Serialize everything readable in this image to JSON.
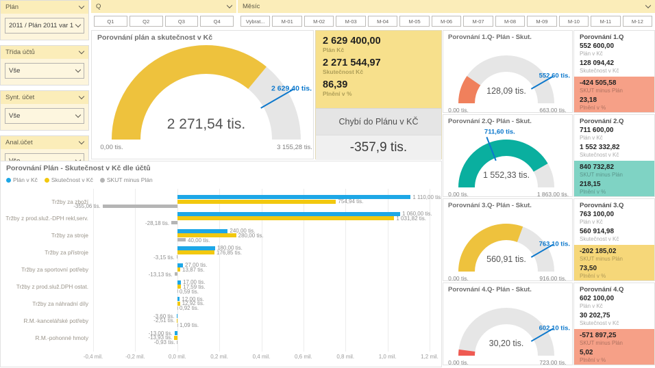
{
  "colors": {
    "accent_yellow": "#f2c80f",
    "target_blue": "#0d78cc",
    "gauge_track": "#e6e6e6",
    "slicer_header_bg": "#fbedb9",
    "kpi_bg": "#f7e08c"
  },
  "sidebar": {
    "filters": [
      {
        "label": "Plán",
        "value": "2011 / Plán 2011 var 1"
      },
      {
        "label": "Třída účtů",
        "value": "Vše"
      },
      {
        "label": "Synt. účet",
        "value": "Vše"
      },
      {
        "label": "Anal.účet",
        "value": "Vše"
      }
    ]
  },
  "slicers": {
    "q": {
      "label": "Q",
      "buttons": [
        "Q1",
        "Q2",
        "Q3",
        "Q4"
      ]
    },
    "month": {
      "label": "Měsíc",
      "buttons": [
        "Vybrat...",
        "M-01",
        "M-02",
        "M-03",
        "M-04",
        "M-05",
        "M-06",
        "M-07",
        "M-08",
        "M-09",
        "M-10",
        "M-11",
        "M-12"
      ]
    }
  },
  "kpi_panel": {
    "items": [
      {
        "value": "2 629 400,00",
        "label": "Plán Kč"
      },
      {
        "value": "2 271 544,97",
        "label": "Skutečnost Kč"
      },
      {
        "value": "86,39",
        "label": "Plnění v %"
      }
    ],
    "missing_header": "Chybí do Plánu v KČ",
    "missing_value": "-357,9 tis."
  },
  "chart_data": [
    {
      "id": "main-gauge",
      "type": "gauge",
      "title": "Porovnání plán a skutečnost v Kč",
      "min": 0,
      "max": 3155.28,
      "value": 2271.54,
      "target": 2629.4,
      "value_label": "2 271,54 tis.",
      "min_label": "0,00 tis.",
      "max_label": "3 155,28 tis.",
      "target_label": "2 629,40 tis.",
      "fill": "#eec23d"
    },
    {
      "id": "accounts-bar",
      "type": "bar",
      "title": "Porovnání Plán - Skutečnost v Kč dle účtů",
      "unit": "tis.",
      "xlim": [
        -400,
        1200
      ],
      "x_ticks_values": [
        -400,
        -200,
        0,
        200,
        400,
        600,
        800,
        1000,
        1200
      ],
      "x_ticks_labels": [
        "-0,4 mil.",
        "-0,2 mil.",
        "0,0 mil.",
        "0,2 mil.",
        "0,4 mil.",
        "0,6 mil.",
        "0,8 mil.",
        "1,0 mil.",
        "1,2 mil."
      ],
      "categories": [
        "Tržby za zboží",
        "Tržby z prod.služ.-DPH rekl,serv.",
        "Tržby za stroje",
        "Tržby za přístroje",
        "Tržby za sportovní potřeby",
        "Tržby z prod.služ.DPH ostat.",
        "Tržby za náhradní díly",
        "R.M.-kancelářské potřeby",
        "R.M.-pohonné hmoty"
      ],
      "series": [
        {
          "name": "Plán v Kč",
          "color": "#1ea7e6",
          "values": [
            1110,
            1060,
            240,
            180,
            27,
            17,
            12,
            -3.6,
            -13
          ],
          "labels": [
            "1 110,00 tis.",
            "1 060,00 tis.",
            "240,00 tis.",
            "180,00 tis.",
            "27,00 tis.",
            "17,00 tis.",
            "12,00 tis.",
            "-3,60 tis.",
            "-13,00 tis."
          ]
        },
        {
          "name": "Skutečnost v Kč",
          "color": "#f2c80f",
          "values": [
            754.94,
            1031.82,
            280,
            176.85,
            13.87,
            17.59,
            12.92,
            -2.51,
            -13.93
          ],
          "labels": [
            "754,94 tis.",
            "1 031,82 tis.",
            "280,00 tis.",
            "176,85 tis.",
            "13,87 tis.",
            "17,59 tis.",
            "12,92 tis.",
            "-2,51 tis.",
            "-13,93 tis."
          ]
        },
        {
          "name": "SKUT minus Plán",
          "color": "#b5b5b5",
          "values": [
            -355.06,
            -28.18,
            40,
            -3.15,
            -13.13,
            0.59,
            0.92,
            1.09,
            -0.93
          ],
          "labels": [
            "-355,06 tis.",
            "-28,18 tis.",
            "40,00 tis.",
            "-3,15 tis.",
            "-13,13 tis.",
            "0,59 tis.",
            "0,92 tis.",
            "1,09 tis.",
            "-0,93 tis."
          ]
        }
      ]
    },
    {
      "id": "q1-gauge",
      "type": "gauge",
      "title": "Porovnání 1.Q- Plán - Skut.",
      "min": 0,
      "max": 663,
      "value": 128.09,
      "target": 552.6,
      "value_label": "128,09 tis.",
      "min_label": "0,00 tis.",
      "max_label": "663,00 tis.",
      "target_label": "552,60 tis.",
      "fill": "#f0805c"
    },
    {
      "id": "q2-gauge",
      "type": "gauge",
      "title": "Porovnání 2.Q- Plán - Skut.",
      "min": 0,
      "max": 1863,
      "value": 1552.33,
      "target": 711.6,
      "value_label": "1 552,33 tis.",
      "min_label": "0,00 tis.",
      "max_label": "1 863,00 tis.",
      "target_label": "711,60 tis.",
      "fill": "#0aaf9f"
    },
    {
      "id": "q3-gauge",
      "type": "gauge",
      "title": "Porovnání 3.Q- Plán - Skut.",
      "min": 0,
      "max": 916,
      "value": 560.91,
      "target": 763.1,
      "value_label": "560,91 tis.",
      "min_label": "0,00 tis.",
      "max_label": "916,00 tis.",
      "target_label": "763,10 tis.",
      "fill": "#eec23d"
    },
    {
      "id": "q4-gauge",
      "type": "gauge",
      "title": "Porovnání 4.Q- Plán - Skut.",
      "min": 0,
      "max": 723,
      "value": 30.2,
      "target": 602.1,
      "value_label": "30,20 tis.",
      "min_label": "0,00 tis.",
      "max_label": "723,00 tis.",
      "target_label": "602,10 tis.",
      "fill": "#ef5a52"
    }
  ],
  "quarter_cards": [
    {
      "title": "Porovnání 1.Q",
      "band_color": "#f6a087",
      "rows_white": [
        {
          "value": "552 600,00",
          "label": "Plán v Kč"
        },
        {
          "value": "128 094,42",
          "label": "Skutečnost v Kč"
        }
      ],
      "rows_band": [
        {
          "value": "-424 505,58",
          "label": "SKUT minus Plán"
        },
        {
          "value": "23,18",
          "label": "Plnění v %"
        }
      ]
    },
    {
      "title": "Porovnání 2.Q",
      "band_color": "#7fd3c4",
      "rows_white": [
        {
          "value": "711 600,00",
          "label": "Plán v Kč"
        },
        {
          "value": "1 552 332,82",
          "label": "Skutečnost v Kč"
        }
      ],
      "rows_band": [
        {
          "value": "840 732,82",
          "label": "SKUT minus Plán"
        },
        {
          "value": "218,15",
          "label": "Plnění v %"
        }
      ]
    },
    {
      "title": "Porovnání 3.Q",
      "band_color": "#f6d779",
      "rows_white": [
        {
          "value": "763 100,00",
          "label": "Plán v Kč"
        },
        {
          "value": "560 914,98",
          "label": "Skutečnost v Kč"
        }
      ],
      "rows_band": [
        {
          "value": "-202 185,02",
          "label": "SKUT minus Plán"
        },
        {
          "value": "73,50",
          "label": "Plnění v %"
        }
      ]
    },
    {
      "title": "Porovnání 4.Q",
      "band_color": "#f6a087",
      "rows_white": [
        {
          "value": "602 100,00",
          "label": "Plán v Kč"
        },
        {
          "value": "30 202,75",
          "label": "Skutečnost v Kč"
        }
      ],
      "rows_band": [
        {
          "value": "-571 897,25",
          "label": "SKUT minus Plán"
        },
        {
          "value": "5,02",
          "label": "Plnění v %"
        }
      ]
    }
  ]
}
